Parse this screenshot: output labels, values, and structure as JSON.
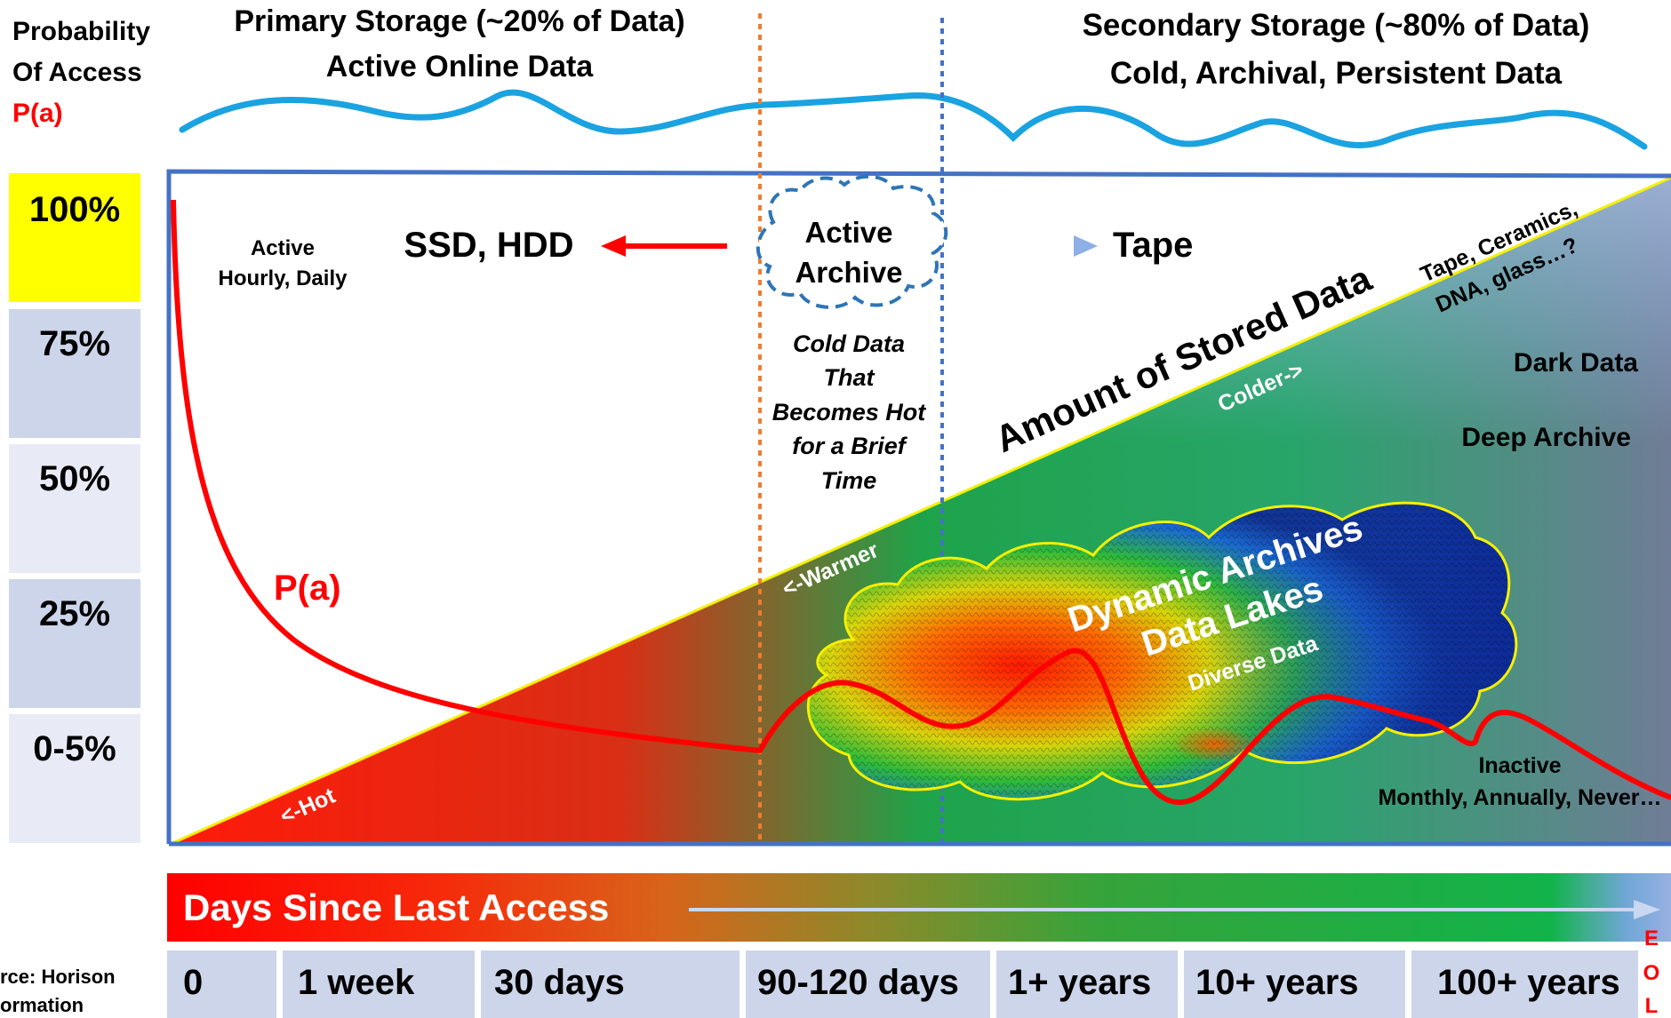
{
  "header": {
    "probability_label_line1": "Probability",
    "probability_label_line2": "Of Access",
    "probability_symbol": "P(a)",
    "primary_line1": "Primary Storage (~20% of Data)",
    "primary_line2": "Active Online Data",
    "secondary_line1": "Secondary Storage (~80% of Data)",
    "secondary_line2": "Cold, Archival, Persistent Data"
  },
  "probability_scale": [
    "100%",
    "75%",
    "50%",
    "25%",
    "0-5%"
  ],
  "diagram": {
    "active_label_line1": "Active",
    "active_label_line2": "Hourly, Daily",
    "ssd_hdd": "SSD, HDD",
    "active_archive_line1": "Active",
    "active_archive_line2": "Archive",
    "tape": "Tape",
    "cold_hot_lines": [
      "Cold Data",
      "That",
      "Becomes Hot",
      "for a Brief",
      "Time"
    ],
    "amount_of_stored_data": "Amount of Stored Data",
    "tape_ceramics_line1": "Tape, Ceramics,",
    "tape_ceramics_line2": "DNA, glass…?",
    "colder": "Colder->",
    "dark_data": "Dark Data",
    "deep_archive": "Deep Archive",
    "warmer": "<-Warmer",
    "hot": "<-Hot",
    "pa_curve_label": "P(a)",
    "cloud_line1": "Dynamic Archives",
    "cloud_line2": "Data Lakes",
    "cloud_line3": "Diverse Data",
    "inactive_line1": "Inactive",
    "inactive_line2": "Monthly, Annually, Never…"
  },
  "footer": {
    "days_since_last_access": "Days Since Last Access",
    "timeline": [
      "0",
      "1 week",
      "30 days",
      "90-120 days",
      "1+ years",
      "10+ years",
      "100+ years"
    ],
    "eol_letters": [
      "E",
      "O",
      "L"
    ],
    "source_line1": "rce: Horison",
    "source_line2": "ormation"
  },
  "colors": {
    "hot_red": "#e0201a",
    "accent_blue": "#4472c4",
    "sky_blue": "#1aa3e0",
    "cell_yellow": "#ffff00",
    "cell_blue": "#cdd5ea",
    "cell_light": "#e8ebf5"
  }
}
